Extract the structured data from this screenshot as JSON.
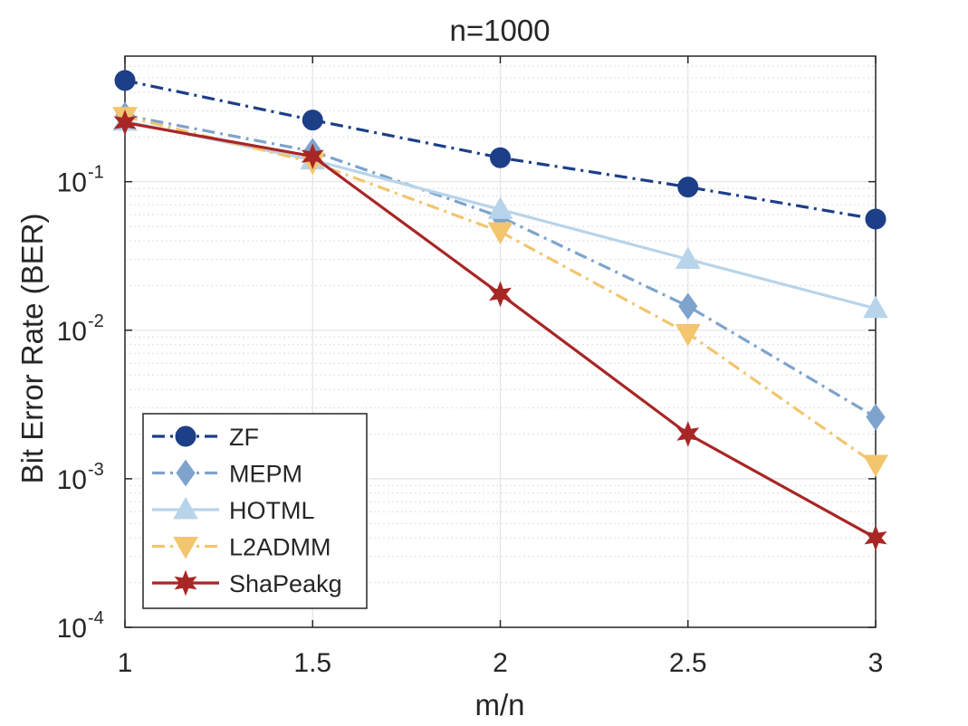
{
  "chart_data": {
    "type": "line",
    "title": "n=1000",
    "xlabel": "m/n",
    "ylabel": "Bit Error Rate (BER)",
    "x": [
      1,
      1.5,
      2,
      2.5,
      3
    ],
    "xlim": [
      1,
      3
    ],
    "ylim": [
      0.0001,
      0.7
    ],
    "yscale": "log",
    "xticks": [
      "1",
      "1.5",
      "2",
      "2.5",
      "3"
    ],
    "yticks": [
      {
        "base": "10",
        "exp": "-4",
        "value": 0.0001
      },
      {
        "base": "10",
        "exp": "-3",
        "value": 0.001
      },
      {
        "base": "10",
        "exp": "-2",
        "value": 0.01
      },
      {
        "base": "10",
        "exp": "-1",
        "value": 0.1
      }
    ],
    "grid": true,
    "legend_position": "bottom-left",
    "series": [
      {
        "name": "ZF",
        "values": [
          0.48,
          0.26,
          0.145,
          0.092,
          0.056
        ],
        "color": "#1c3f87",
        "dash": "dashdot",
        "marker": "circle"
      },
      {
        "name": "MEPM",
        "values": [
          0.28,
          0.16,
          0.058,
          0.0145,
          0.0026
        ],
        "color": "#7ea3cd",
        "dash": "dashdot",
        "marker": "diamond"
      },
      {
        "name": "HOTML",
        "values": [
          0.255,
          0.14,
          0.065,
          0.03,
          0.014
        ],
        "color": "#b8d4ea",
        "dash": "solid",
        "marker": "triangle-up"
      },
      {
        "name": "L2ADMM",
        "values": [
          0.275,
          0.135,
          0.046,
          0.0095,
          0.00125
        ],
        "color": "#f2c56e",
        "dash": "dashdot",
        "marker": "triangle-down"
      },
      {
        "name": "ShaPeakg",
        "values": [
          0.25,
          0.148,
          0.0175,
          0.002,
          0.0004
        ],
        "color": "#a82626",
        "dash": "solid",
        "marker": "star"
      }
    ]
  }
}
